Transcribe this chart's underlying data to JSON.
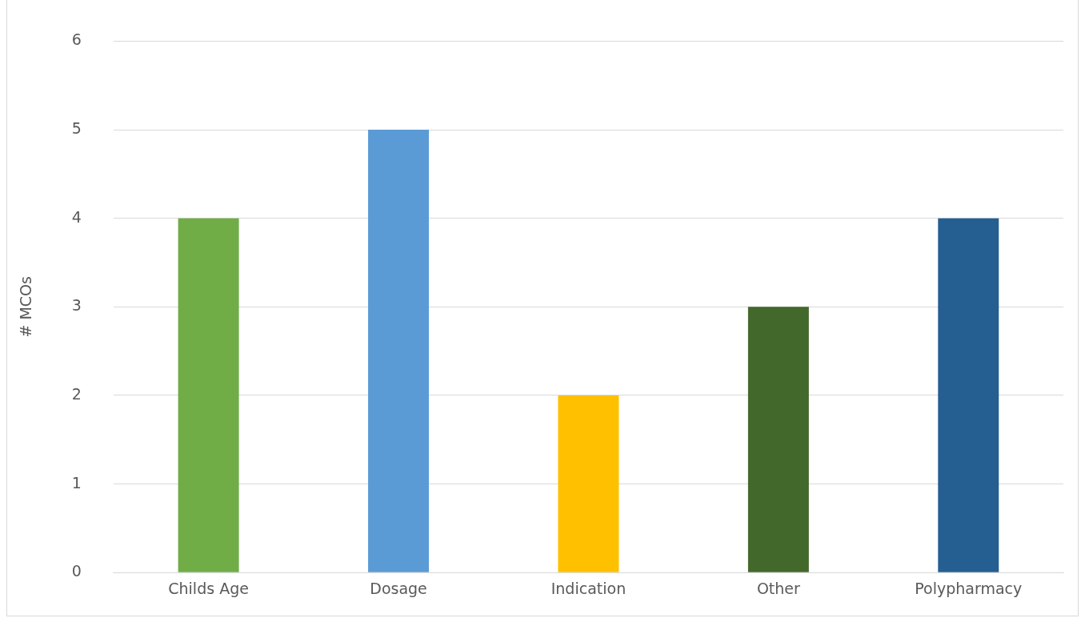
{
  "chart_data": {
    "type": "bar",
    "ylabel": "# MCOs",
    "categories": [
      "Childs Age",
      "Dosage",
      "Indication",
      "Other",
      "Polypharmacy"
    ],
    "values": [
      4,
      5,
      2,
      3,
      4
    ],
    "colors": [
      "#70ad47",
      "#5b9bd5",
      "#ffc000",
      "#43682b",
      "#255e91"
    ],
    "ylim": [
      0,
      6
    ],
    "yticks": [
      0,
      1,
      2,
      3,
      4,
      5,
      6
    ],
    "grid": "y",
    "legend": false
  }
}
